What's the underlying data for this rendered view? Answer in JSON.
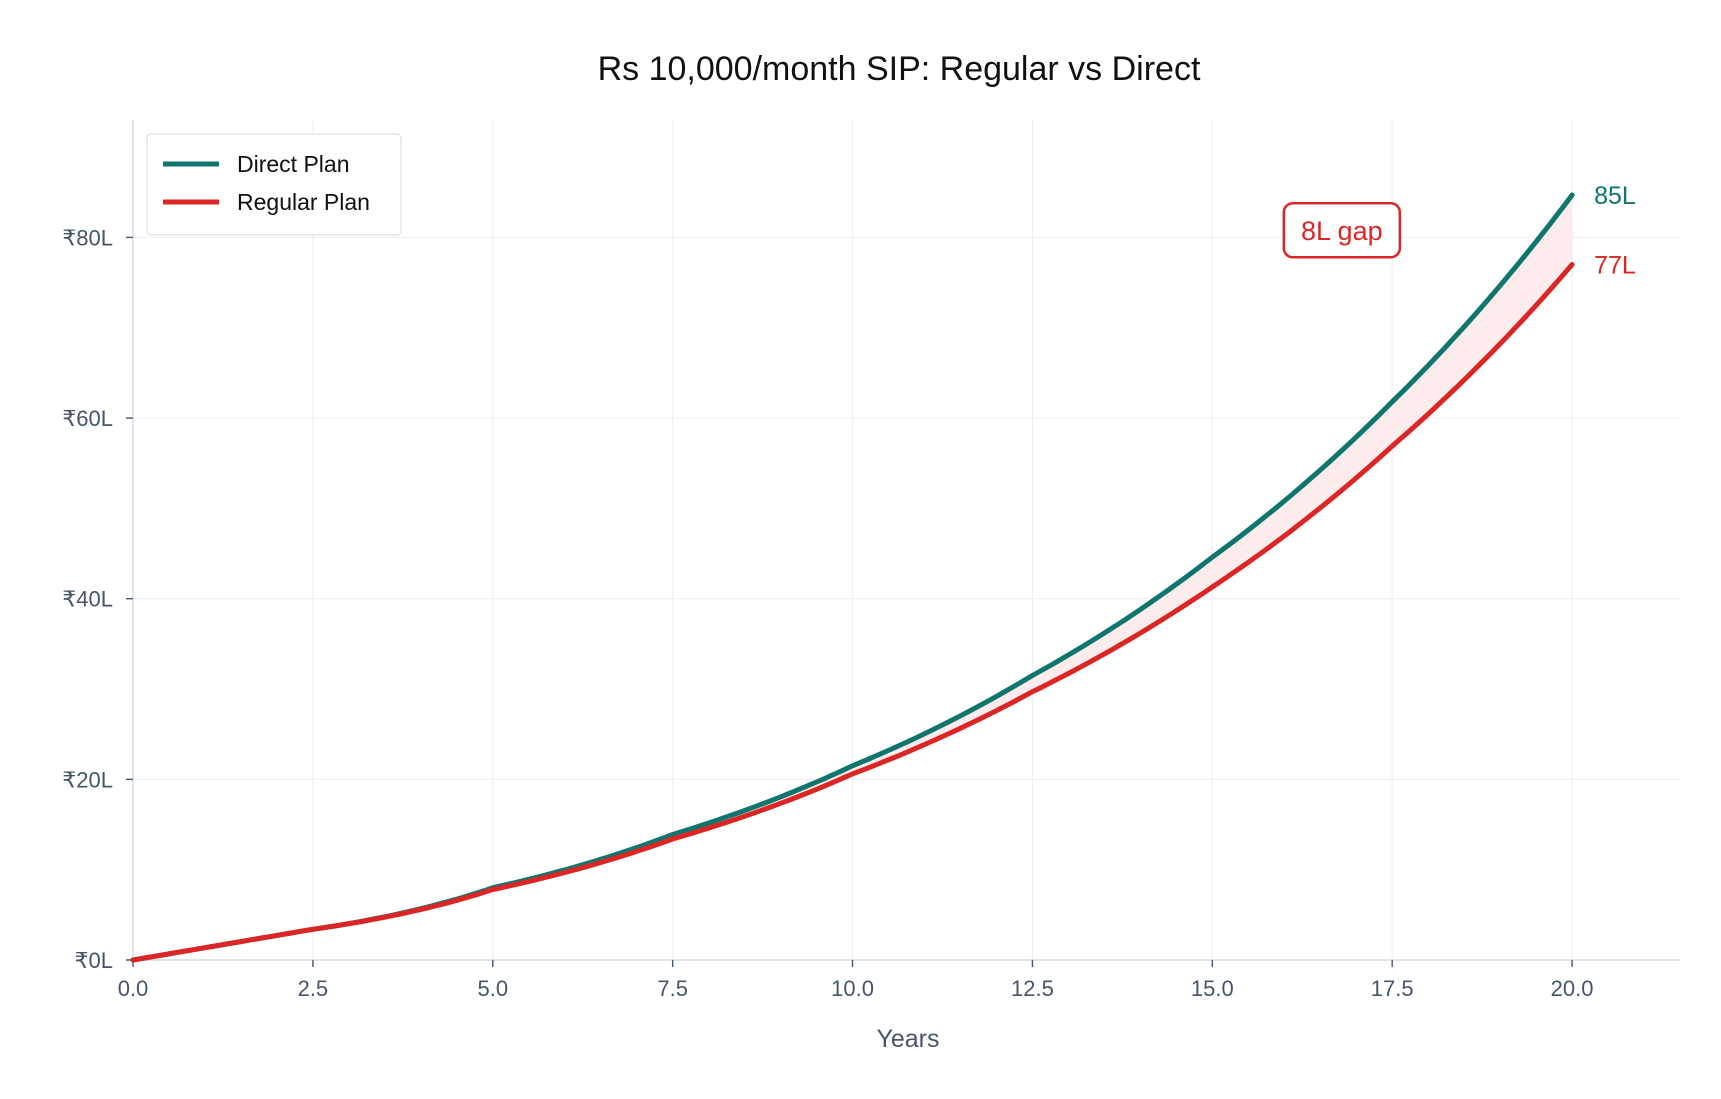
{
  "chart_data": {
    "type": "line",
    "title": "Rs 10,000/month SIP: Regular vs Direct",
    "xlabel": "Years",
    "ylabel": "",
    "xlim": [
      0,
      21.5
    ],
    "ylim": [
      0,
      93
    ],
    "x_ticks": [
      0,
      2.5,
      5,
      7.5,
      10,
      12.5,
      15,
      17.5,
      20
    ],
    "x_tick_labels": [
      "0.0",
      "2.5",
      "5.0",
      "7.5",
      "10.0",
      "12.5",
      "15.0",
      "17.5",
      "20.0"
    ],
    "y_ticks": [
      0,
      20,
      40,
      60,
      80
    ],
    "y_tick_labels": [
      "₹0L",
      "₹20L",
      "₹40L",
      "₹60L",
      "₹80L"
    ],
    "grid": true,
    "legend_position": "top-left",
    "x": [
      0,
      2.5,
      5,
      7.5,
      10,
      12.5,
      15,
      17.5,
      20
    ],
    "series": [
      {
        "name": "Direct Plan",
        "color": "#0f766e",
        "values": [
          0,
          3.4,
          8.0,
          13.9,
          21.5,
          31.5,
          44.6,
          61.8,
          84.7
        ]
      },
      {
        "name": "Regular Plan",
        "color": "#dc2626",
        "values": [
          0,
          3.4,
          7.8,
          13.4,
          20.6,
          29.7,
          41.3,
          56.9,
          77.0
        ]
      }
    ],
    "end_labels": [
      {
        "text": "85L",
        "series": 0
      },
      {
        "text": "77L",
        "series": 1
      }
    ],
    "gap_annotation": {
      "text": "8L gap",
      "x": 16.8,
      "y": 80.8,
      "color": "#dc2626"
    },
    "gap_fill_color": "#fdecec"
  }
}
